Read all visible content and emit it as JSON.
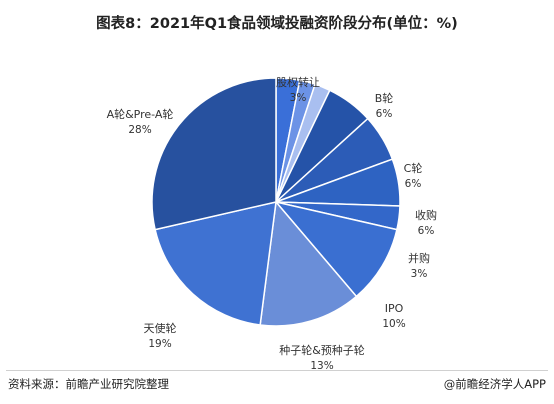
{
  "title": "图表8：2021年Q1食品领域投融资阶段分布(单位：%)",
  "footer": {
    "source": "资料来源：前瞻产业研究院整理",
    "brand": "@前瞻经济学人APP"
  },
  "colors": {
    "palette": [
      "#3a6fd8",
      "#6c93e6",
      "#a9bff0",
      "#2553a8",
      "#2c5cb7",
      "#2e63c2",
      "#3367c9",
      "#3a6fd1",
      "#6a8ed8",
      "#3f72d2",
      "#27519f"
    ]
  },
  "chart_data": {
    "type": "pie",
    "slices": [
      {
        "label": "股权转让",
        "value": 3
      },
      {
        "label": "",
        "value": 2
      },
      {
        "label": "",
        "value": 2
      },
      {
        "label": "B轮",
        "value": 6
      },
      {
        "label": "C轮",
        "value": 6
      },
      {
        "label": "收购",
        "value": 6
      },
      {
        "label": "并购",
        "value": 3
      },
      {
        "label": "IPO",
        "value": 10
      },
      {
        "label": "种子轮&预种子轮",
        "value": 13
      },
      {
        "label": "天使轮",
        "value": 19
      },
      {
        "label": "A轮&Pre-A轮",
        "value": 28
      }
    ],
    "value_suffix": "%"
  }
}
